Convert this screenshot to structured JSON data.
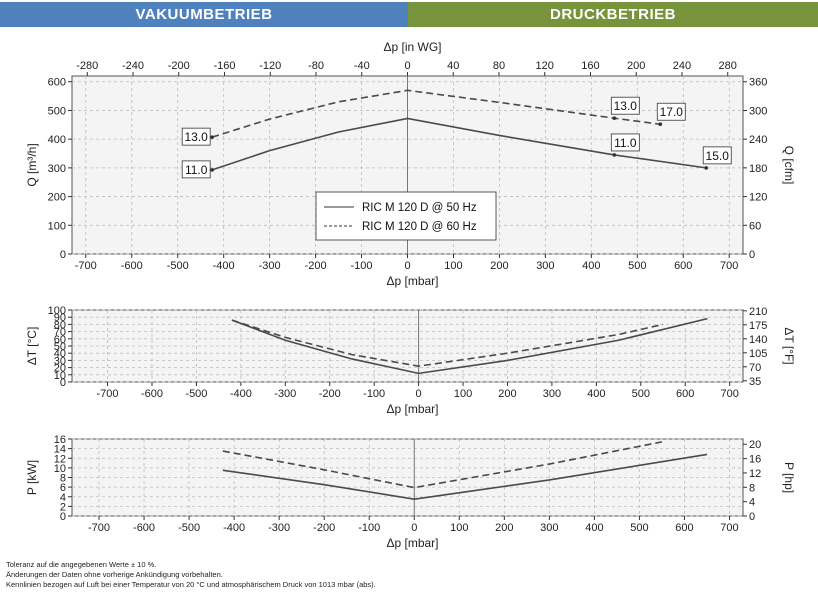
{
  "headers": {
    "vacuum": "VAKUUMBETRIEB",
    "pressure": "DRUCKBETRIEB",
    "vacuum_color": "#4f81bd",
    "pressure_color": "#77933c"
  },
  "footer": {
    "line1": "Toleranz auf die angegebenen Werte ± 10 %.",
    "line2": "Änderungen der Daten ohne vorherige Ankündigung vorbehalten.",
    "line3": "Kennlinien bezogen auf Luft bei einer Temperatur von 20 °C und atmosphärischem Druck von 1013 mbar (abs)."
  },
  "chart_data": [
    {
      "type": "line",
      "xlabel": "Δp [mbar]",
      "x2label": "Δp [in WG]",
      "ylabel": "Q [m³/h]",
      "y2label": "Q [cfm]",
      "xlim": [
        -730,
        730
      ],
      "ylim": [
        0,
        620
      ],
      "x_ticks": [
        -700,
        -600,
        -500,
        -400,
        -300,
        -200,
        -100,
        0,
        100,
        200,
        300,
        400,
        500,
        600,
        700
      ],
      "x2_ticks": [
        -280,
        -240,
        -200,
        -160,
        -120,
        -80,
        -40,
        0,
        40,
        80,
        120,
        160,
        200,
        240,
        280
      ],
      "y_ticks": [
        0,
        100,
        200,
        300,
        400,
        500,
        600
      ],
      "y2_ticks": [
        0,
        60,
        120,
        180,
        240,
        300,
        360
      ],
      "grid": true,
      "legend": {
        "position": "center",
        "entries": [
          "RIC M 120 D @ 50 Hz",
          "RIC M 120 D @ 60 Hz"
        ]
      },
      "series": [
        {
          "name": "RIC M 120 D @ 50 Hz",
          "style": "solid",
          "x": [
            -425,
            -300,
            -150,
            0,
            200,
            450,
            650
          ],
          "y": [
            293,
            360,
            425,
            472,
            413,
            345,
            300
          ]
        },
        {
          "name": "RIC M 120 D @ 60 Hz",
          "style": "dashed",
          "x": [
            -425,
            -300,
            -150,
            0,
            200,
            450,
            550
          ],
          "y": [
            407,
            470,
            530,
            570,
            528,
            473,
            452
          ]
        }
      ],
      "annotations": [
        {
          "text": "13.0",
          "x": -425,
          "y": 407,
          "anchor": "left"
        },
        {
          "text": "11.0",
          "x": -425,
          "y": 293,
          "anchor": "left"
        },
        {
          "text": "13.0",
          "x": 450,
          "y": 473,
          "anchor": "above"
        },
        {
          "text": "17.0",
          "x": 550,
          "y": 452,
          "anchor": "above"
        },
        {
          "text": "11.0",
          "x": 450,
          "y": 345,
          "anchor": "above"
        },
        {
          "text": "15.0",
          "x": 650,
          "y": 300,
          "anchor": "above"
        }
      ]
    },
    {
      "type": "line",
      "xlabel": "Δp [mbar]",
      "ylabel": "ΔT [°C]",
      "y2label": "ΔT [°F]",
      "xlim": [
        -780,
        730
      ],
      "ylim": [
        0,
        100
      ],
      "x_ticks": [
        -700,
        -600,
        -500,
        -400,
        -300,
        -200,
        -100,
        0,
        100,
        200,
        300,
        400,
        500,
        600,
        700
      ],
      "y_ticks": [
        0,
        10,
        20,
        30,
        40,
        50,
        60,
        70,
        80,
        90,
        100
      ],
      "y2_ticks": [
        35,
        70,
        105,
        140,
        175,
        210
      ],
      "grid": true,
      "series": [
        {
          "name": "RIC M 120 D @ 50 Hz",
          "style": "solid",
          "x": [
            -420,
            -300,
            -150,
            0,
            200,
            450,
            650
          ],
          "y": [
            86,
            58,
            32,
            12,
            30,
            58,
            88
          ]
        },
        {
          "name": "RIC M 120 D @ 60 Hz",
          "style": "dashed",
          "x": [
            -420,
            -300,
            -150,
            0,
            200,
            450,
            550
          ],
          "y": [
            86,
            62,
            38,
            22,
            40,
            66,
            80
          ]
        }
      ]
    },
    {
      "type": "line",
      "xlabel": "Δp [mbar]",
      "ylabel": "P [kW]",
      "y2label": "P [hp]",
      "xlim": [
        -760,
        730
      ],
      "ylim": [
        0,
        16
      ],
      "x_ticks": [
        -700,
        -600,
        -500,
        -400,
        -300,
        -200,
        -100,
        0,
        100,
        200,
        300,
        400,
        500,
        600,
        700
      ],
      "y_ticks": [
        0,
        2,
        4,
        6,
        8,
        10,
        12,
        14,
        16
      ],
      "y2_ticks": [
        0,
        4,
        8,
        12,
        16,
        20
      ],
      "grid": true,
      "series": [
        {
          "name": "RIC M 120 D @ 50 Hz",
          "style": "solid",
          "x": [
            -425,
            -200,
            0,
            300,
            650
          ],
          "y": [
            9.5,
            6.5,
            3.5,
            7.5,
            12.8
          ]
        },
        {
          "name": "RIC M 120 D @ 60 Hz",
          "style": "dashed",
          "x": [
            -425,
            -200,
            0,
            300,
            550
          ],
          "y": [
            13.5,
            9.6,
            5.9,
            10.8,
            15.4
          ]
        }
      ]
    }
  ]
}
